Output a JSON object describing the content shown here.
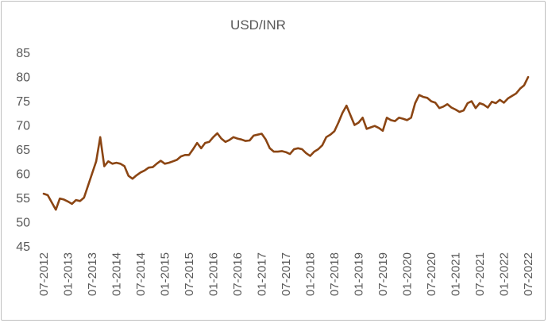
{
  "chart_data": {
    "type": "line",
    "title": "USD/INR",
    "xlabel": "",
    "ylabel": "",
    "ylim": [
      45,
      85
    ],
    "yticks": [
      "45",
      "50",
      "55",
      "60",
      "65",
      "70",
      "75",
      "80",
      "85"
    ],
    "xticks": [
      "07-2012",
      "01-2013",
      "07-2013",
      "01-2014",
      "07-2014",
      "01-2015",
      "07-2015",
      "01-2016",
      "07-2016",
      "01-2017",
      "07-2017",
      "01-2018",
      "07-2018",
      "01-2019",
      "07-2019",
      "01-2020",
      "07-2020",
      "01-2021",
      "07-2021",
      "01-2022",
      "07-2022"
    ],
    "grid": false,
    "line_color": "#8B4513",
    "series": [
      {
        "x": [
          "2012-07",
          "2012-08",
          "2012-09",
          "2012-10",
          "2012-11",
          "2012-12",
          "2013-01",
          "2013-02",
          "2013-03",
          "2013-04",
          "2013-05",
          "2013-06",
          "2013-07",
          "2013-08",
          "2013-09",
          "2013-10",
          "2013-11",
          "2013-12",
          "2014-01",
          "2014-02",
          "2014-03",
          "2014-04",
          "2014-05",
          "2014-06",
          "2014-07",
          "2014-08",
          "2014-09",
          "2014-10",
          "2014-11",
          "2014-12",
          "2015-01",
          "2015-02",
          "2015-03",
          "2015-04",
          "2015-05",
          "2015-06",
          "2015-07",
          "2015-08",
          "2015-09",
          "2015-10",
          "2015-11",
          "2015-12",
          "2016-01",
          "2016-02",
          "2016-03",
          "2016-04",
          "2016-05",
          "2016-06",
          "2016-07",
          "2016-08",
          "2016-09",
          "2016-10",
          "2016-11",
          "2016-12",
          "2017-01",
          "2017-02",
          "2017-03",
          "2017-04",
          "2017-05",
          "2017-06",
          "2017-07",
          "2017-08",
          "2017-09",
          "2017-10",
          "2017-11",
          "2017-12",
          "2018-01",
          "2018-02",
          "2018-03",
          "2018-04",
          "2018-05",
          "2018-06",
          "2018-07",
          "2018-08",
          "2018-09",
          "2018-10",
          "2018-11",
          "2018-12",
          "2019-01",
          "2019-02",
          "2019-03",
          "2019-04",
          "2019-05",
          "2019-06",
          "2019-07",
          "2019-08",
          "2019-09",
          "2019-10",
          "2019-11",
          "2019-12",
          "2020-01",
          "2020-02",
          "2020-03",
          "2020-04",
          "2020-05",
          "2020-06",
          "2020-07",
          "2020-08",
          "2020-09",
          "2020-10",
          "2020-11",
          "2020-12",
          "2021-01",
          "2021-02",
          "2021-03",
          "2021-04",
          "2021-05",
          "2021-06",
          "2021-07",
          "2021-08",
          "2021-09",
          "2021-10",
          "2021-11",
          "2021-12",
          "2022-01",
          "2022-02",
          "2022-03",
          "2022-04",
          "2022-05",
          "2022-06",
          "2022-07"
        ],
        "values": [
          55.8,
          55.5,
          54.0,
          52.5,
          54.8,
          54.6,
          54.2,
          53.7,
          54.5,
          54.3,
          55.0,
          57.5,
          60.0,
          62.5,
          67.5,
          61.5,
          62.5,
          62.0,
          62.2,
          62.0,
          61.5,
          59.5,
          58.9,
          59.6,
          60.2,
          60.6,
          61.2,
          61.3,
          62.0,
          62.6,
          62.0,
          62.2,
          62.5,
          62.8,
          63.5,
          63.8,
          63.8,
          65.0,
          66.3,
          65.2,
          66.3,
          66.5,
          67.5,
          68.3,
          67.2,
          66.5,
          66.9,
          67.5,
          67.2,
          67.0,
          66.7,
          66.8,
          67.8,
          68.0,
          68.2,
          67.0,
          65.2,
          64.5,
          64.5,
          64.6,
          64.4,
          64.0,
          65.0,
          65.2,
          65.0,
          64.2,
          63.6,
          64.5,
          65.0,
          65.8,
          67.5,
          68.0,
          68.7,
          70.5,
          72.5,
          74.0,
          72.0,
          70.0,
          70.5,
          71.5,
          69.2,
          69.5,
          69.8,
          69.4,
          68.8,
          71.5,
          71.0,
          70.8,
          71.5,
          71.3,
          71.0,
          71.5,
          74.5,
          76.2,
          75.8,
          75.6,
          74.9,
          74.6,
          73.5,
          73.8,
          74.3,
          73.6,
          73.2,
          72.7,
          73.0,
          74.5,
          74.9,
          73.5,
          74.5,
          74.2,
          73.6,
          74.8,
          74.5,
          75.2,
          74.6,
          75.5,
          76.0,
          76.5,
          77.5,
          78.2,
          79.9
        ]
      }
    ]
  }
}
